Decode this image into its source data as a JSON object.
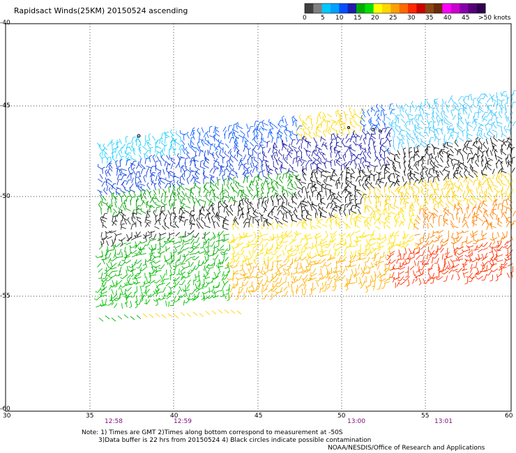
{
  "title": "Rapidsact Winds(25KM) 20150524 ascending",
  "colorbar": {
    "labels": [
      "0",
      "5",
      "10",
      "15",
      "20",
      "25",
      "30",
      "35",
      "40",
      "45",
      ">50 knots"
    ],
    "colors": [
      "#404040",
      "#808080",
      "#00c8ff",
      "#00a0ff",
      "#0050ff",
      "#1e1eaa",
      "#00aa00",
      "#00e000",
      "#ffff00",
      "#ffd700",
      "#ffa000",
      "#ff6a00",
      "#ff2800",
      "#cc0000",
      "#8b4513",
      "#6b2a0a",
      "#ff00ff",
      "#cc00cc",
      "#8800aa",
      "#550077",
      "#300050"
    ]
  },
  "axes": {
    "y_labels": [
      "-40",
      "-45",
      "-50",
      "-55",
      "-60"
    ],
    "x_labels": [
      "30",
      "35",
      "40",
      "45",
      "50",
      "55",
      "60"
    ],
    "time_labels": [
      "12:58",
      "12:59",
      "13:00",
      "13:01"
    ]
  },
  "notes": {
    "line1": "Note: 1) Times are GMT 2)Times along bottom correspond to measurement at -50S",
    "line2": "3)Data buffer is 22 hrs from 20150524 4) Black circles indicate possible contamination",
    "line3": "NOAA/NESDIS/Office of Research and Applications"
  }
}
